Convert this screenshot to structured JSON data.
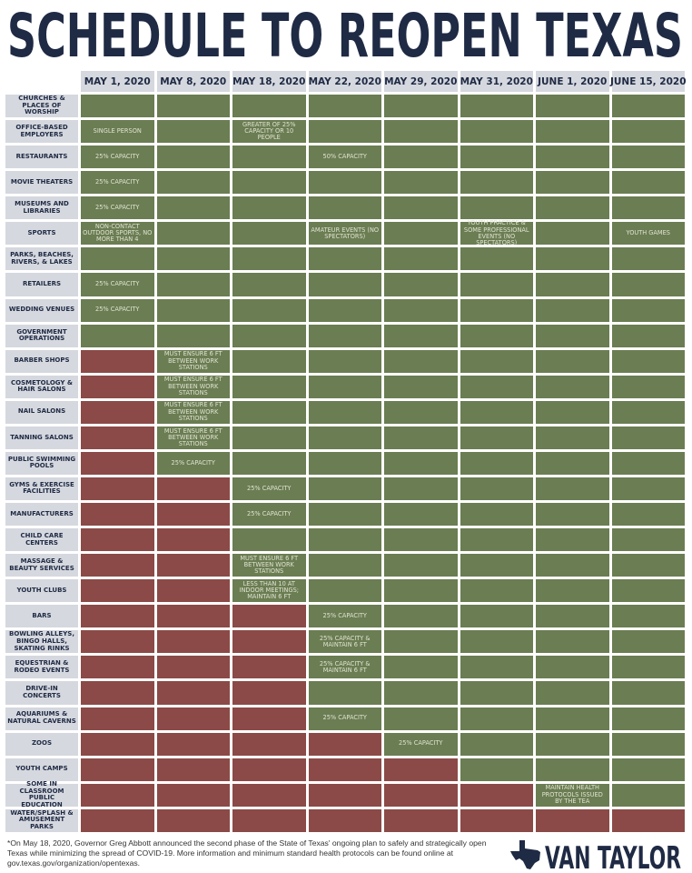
{
  "title": "SCHEDULE TO REOPEN TEXAS",
  "colors": {
    "open": "#6b7d52",
    "closed": "#8b4a47",
    "label_bg": "#d5d8de",
    "navy": "#1f2a44"
  },
  "chart_data": {
    "type": "table",
    "columns": [
      "MAY 1, 2020",
      "MAY 8, 2020",
      "MAY 18, 2020",
      "MAY 22, 2020",
      "MAY 29, 2020",
      "MAY 31, 2020",
      "JUNE 1, 2020",
      "JUNE 15, 2020"
    ],
    "rows": [
      {
        "label": "CHURCHES & PLACES OF WORSHIP",
        "opens_column": 0,
        "notes": {}
      },
      {
        "label": "OFFICE-BASED EMPLOYERS",
        "opens_column": 0,
        "notes": {
          "0": "SINGLE PERSON",
          "2": "GREATER OF 25% CAPACITY OR 10 PEOPLE"
        }
      },
      {
        "label": "RESTAURANTS",
        "opens_column": 0,
        "notes": {
          "0": "25% CAPACITY",
          "3": "50% CAPACITY"
        }
      },
      {
        "label": "MOVIE THEATERS",
        "opens_column": 0,
        "notes": {
          "0": "25% CAPACITY"
        }
      },
      {
        "label": "MUSEUMS AND LIBRARIES",
        "opens_column": 0,
        "notes": {
          "0": "25% CAPACITY"
        }
      },
      {
        "label": "SPORTS",
        "opens_column": 0,
        "notes": {
          "0": "NON-CONTACT OUTDOOR SPORTS, NO MORE THAN 4",
          "3": "AMATEUR EVENTS (NO SPECTATORS)",
          "5": "YOUTH PRACTICE & SOME PROFESSIONAL EVENTS (NO SPECTATORS)",
          "7": "YOUTH GAMES"
        }
      },
      {
        "label": "PARKS, BEACHES, RIVERS, & LAKES",
        "opens_column": 0,
        "notes": {}
      },
      {
        "label": "RETAILERS",
        "opens_column": 0,
        "notes": {
          "0": "25% CAPACITY"
        }
      },
      {
        "label": "WEDDING VENUES",
        "opens_column": 0,
        "notes": {
          "0": "25% CAPACITY"
        }
      },
      {
        "label": "GOVERNMENT OPERATIONS",
        "opens_column": 0,
        "notes": {}
      },
      {
        "label": "BARBER SHOPS",
        "opens_column": 1,
        "notes": {
          "1": "MUST ENSURE 6 FT BETWEEN WORK STATIONS"
        }
      },
      {
        "label": "COSMETOLOGY & HAIR SALONS",
        "opens_column": 1,
        "notes": {
          "1": "MUST ENSURE 6 FT BETWEEN WORK STATIONS"
        }
      },
      {
        "label": "NAIL SALONS",
        "opens_column": 1,
        "notes": {
          "1": "MUST ENSURE 6 FT BETWEEN WORK STATIONS"
        }
      },
      {
        "label": "TANNING SALONS",
        "opens_column": 1,
        "notes": {
          "1": "MUST ENSURE 6 FT BETWEEN WORK STATIONS"
        }
      },
      {
        "label": "PUBLIC SWIMMING POOLS",
        "opens_column": 1,
        "notes": {
          "1": "25% CAPACITY"
        }
      },
      {
        "label": "GYMS & EXERCISE FACILITIES",
        "opens_column": 2,
        "notes": {
          "2": "25% CAPACITY"
        }
      },
      {
        "label": "MANUFACTURERS",
        "opens_column": 2,
        "notes": {
          "2": "25% CAPACITY"
        }
      },
      {
        "label": "CHILD CARE CENTERS",
        "opens_column": 2,
        "notes": {}
      },
      {
        "label": "MASSAGE & BEAUTY SERVICES",
        "opens_column": 2,
        "notes": {
          "2": "MUST ENSURE 6 FT BETWEEN WORK STATIONS"
        }
      },
      {
        "label": "YOUTH CLUBS",
        "opens_column": 2,
        "notes": {
          "2": "LESS THAN 10 AT INDOOR MEETINGS; MAINTAIN 6 FT"
        }
      },
      {
        "label": "BARS",
        "opens_column": 3,
        "notes": {
          "3": "25% CAPACITY"
        }
      },
      {
        "label": "BOWLING ALLEYS, BINGO HALLS, SKATING RINKS",
        "opens_column": 3,
        "notes": {
          "3": "25% CAPACITY & MAINTAIN 6 FT"
        }
      },
      {
        "label": "EQUESTRIAN & RODEO EVENTS",
        "opens_column": 3,
        "notes": {
          "3": "25% CAPACITY & MAINTAIN 6 FT"
        }
      },
      {
        "label": "DRIVE-IN CONCERTS",
        "opens_column": 3,
        "notes": {}
      },
      {
        "label": "AQUARIUMS & NATURAL CAVERNS",
        "opens_column": 3,
        "notes": {
          "3": "25% CAPACITY"
        }
      },
      {
        "label": "ZOOS",
        "opens_column": 4,
        "notes": {
          "4": "25% CAPACITY"
        }
      },
      {
        "label": "YOUTH CAMPS",
        "opens_column": 5,
        "notes": {}
      },
      {
        "label": "SOME IN CLASSROOM PUBLIC EDUCATION",
        "opens_column": 6,
        "notes": {
          "6": "MAINTAIN HEALTH PROTOCOLS ISSUED BY THE TEA"
        }
      },
      {
        "label": "WATER/SPLASH & AMUSEMENT PARKS",
        "opens_column": null,
        "notes": {}
      }
    ]
  },
  "footnote": "*On May 18, 2020, Governor Greg Abbott announced the second phase of the State of Texas' ongoing plan to safely and strategically open Texas while minimizing the spread of COVID-19. More information and minimum standard health protocols can be found online at gov.texas.gov/organization/opentexas.",
  "logo": {
    "text": "VAN TAYLOR",
    "icon": "texas-star-icon"
  }
}
